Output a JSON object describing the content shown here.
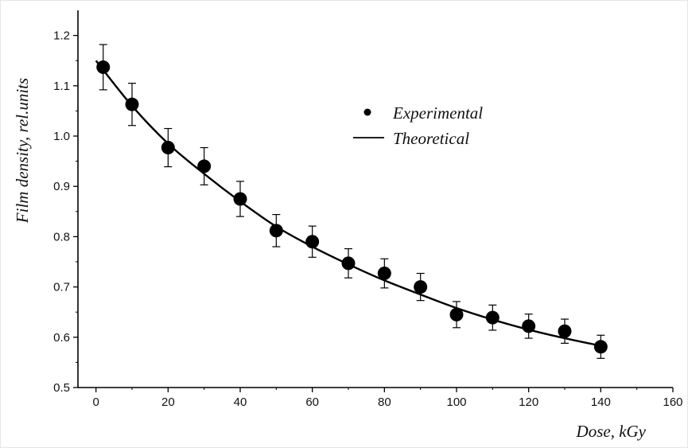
{
  "chart_data": {
    "type": "scatter",
    "title": "",
    "xlabel": "Dose, kGy",
    "ylabel": "Film density, rel.units",
    "xlim": [
      -5,
      160
    ],
    "ylim": [
      0.5,
      1.25
    ],
    "xticks": [
      0,
      20,
      40,
      60,
      80,
      100,
      120,
      140,
      160
    ],
    "yticks": [
      0.5,
      0.6,
      0.7,
      0.8,
      0.9,
      1.0,
      1.1,
      1.2
    ],
    "ytick_labels": [
      "0.5",
      "0.6",
      "0.7",
      "0.8",
      "0.9",
      "1.0",
      "1.1",
      "1.2"
    ],
    "grid": false,
    "legend_position": "upper-middle",
    "series": [
      {
        "name": "Experimental",
        "kind": "points-with-error-bars",
        "x": [
          2,
          10,
          20,
          30,
          40,
          50,
          60,
          70,
          80,
          90,
          100,
          110,
          120,
          130,
          140
        ],
        "y": [
          1.137,
          1.063,
          0.977,
          0.94,
          0.875,
          0.812,
          0.79,
          0.747,
          0.727,
          0.7,
          0.645,
          0.639,
          0.622,
          0.612,
          0.581
        ],
        "yerr": [
          0.045,
          0.042,
          0.038,
          0.037,
          0.035,
          0.032,
          0.031,
          0.029,
          0.029,
          0.027,
          0.026,
          0.025,
          0.024,
          0.024,
          0.023
        ]
      },
      {
        "name": "Theoretical",
        "kind": "line",
        "x": [
          0,
          10,
          20,
          30,
          40,
          50,
          60,
          70,
          80,
          90,
          100,
          110,
          120,
          130,
          140
        ],
        "y": [
          1.15,
          1.06,
          0.985,
          0.925,
          0.87,
          0.82,
          0.78,
          0.745,
          0.713,
          0.685,
          0.658,
          0.635,
          0.615,
          0.598,
          0.583
        ]
      }
    ],
    "colors": {
      "points": "#000000",
      "line": "#000000",
      "axis": "#000000"
    }
  }
}
